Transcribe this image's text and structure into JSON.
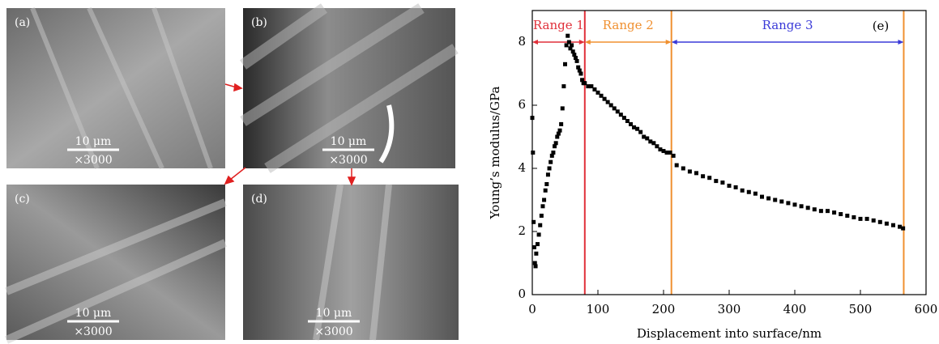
{
  "images": [
    {
      "label": "(a)",
      "scale": "10 μm",
      "magnification": "×3000"
    },
    {
      "label": "(b)",
      "scale": "10 μm",
      "magnification": "×3000"
    },
    {
      "label": "(c)",
      "scale": "10 μm",
      "magnification": "×3000"
    },
    {
      "label": "(d)",
      "scale": "10 μm",
      "magnification": "×3000"
    }
  ],
  "chart_data": {
    "type": "scatter",
    "panel_label": "(e)",
    "x_label": "Displacement into surface/nm",
    "y_label": "Young’s modulus/GPa",
    "xlim": [
      0,
      600
    ],
    "ylim": [
      0,
      9
    ],
    "xticks": [
      0,
      100,
      200,
      300,
      400,
      500,
      600
    ],
    "yticks": [
      0,
      2,
      4,
      6,
      8
    ],
    "ranges": [
      {
        "label": "Range 1",
        "color": "#e0303a",
        "line_color": "#e0303a",
        "start": 0,
        "end": 80,
        "y": 8
      },
      {
        "label": "Range 2",
        "color": "#f09030",
        "line_color": "#f09030",
        "start": 80,
        "end": 212,
        "y": 8
      },
      {
        "label": "Range 3",
        "color": "#3a3ad8",
        "line_color": "#f09030",
        "start": 212,
        "end": 566,
        "y": 8
      }
    ],
    "series": [
      {
        "color": "#000000",
        "x": [
          0,
          1,
          2,
          3,
          4,
          5,
          6,
          8,
          10,
          12,
          14,
          16,
          18,
          20,
          22,
          24,
          26,
          28,
          30,
          32,
          34,
          36,
          38,
          40,
          42,
          44,
          46,
          48,
          50,
          52,
          54,
          56,
          58,
          60,
          62,
          64,
          66,
          68,
          70,
          72,
          74,
          76,
          78,
          80,
          85,
          90,
          95,
          100,
          105,
          110,
          115,
          120,
          125,
          130,
          135,
          140,
          145,
          150,
          155,
          160,
          165,
          170,
          175,
          180,
          185,
          190,
          195,
          200,
          205,
          210,
          215,
          220,
          230,
          240,
          250,
          260,
          270,
          280,
          290,
          300,
          310,
          320,
          330,
          340,
          350,
          360,
          370,
          380,
          390,
          400,
          410,
          420,
          430,
          440,
          450,
          460,
          470,
          480,
          490,
          500,
          510,
          520,
          530,
          540,
          550,
          560,
          565
        ],
        "values": [
          5.6,
          4.5,
          2.3,
          1.5,
          1.0,
          0.9,
          1.3,
          1.6,
          1.9,
          2.2,
          2.5,
          2.8,
          3.0,
          3.3,
          3.5,
          3.8,
          4.0,
          4.2,
          4.4,
          4.5,
          4.7,
          4.8,
          5.0,
          5.1,
          5.2,
          5.4,
          5.9,
          6.6,
          7.3,
          7.9,
          8.2,
          8.0,
          7.8,
          7.9,
          7.7,
          7.6,
          7.5,
          7.4,
          7.2,
          7.1,
          7.0,
          6.8,
          6.7,
          6.7,
          6.6,
          6.6,
          6.5,
          6.4,
          6.3,
          6.2,
          6.1,
          6.0,
          5.9,
          5.8,
          5.7,
          5.6,
          5.5,
          5.4,
          5.3,
          5.25,
          5.15,
          5.0,
          4.95,
          4.85,
          4.8,
          4.7,
          4.6,
          4.55,
          4.5,
          4.5,
          4.4,
          4.1,
          4.0,
          3.9,
          3.85,
          3.75,
          3.7,
          3.6,
          3.55,
          3.45,
          3.4,
          3.3,
          3.25,
          3.2,
          3.1,
          3.05,
          3.0,
          2.95,
          2.9,
          2.85,
          2.8,
          2.75,
          2.7,
          2.65,
          2.65,
          2.6,
          2.55,
          2.5,
          2.45,
          2.4,
          2.4,
          2.35,
          2.3,
          2.25,
          2.2,
          2.15,
          2.1
        ]
      }
    ]
  }
}
